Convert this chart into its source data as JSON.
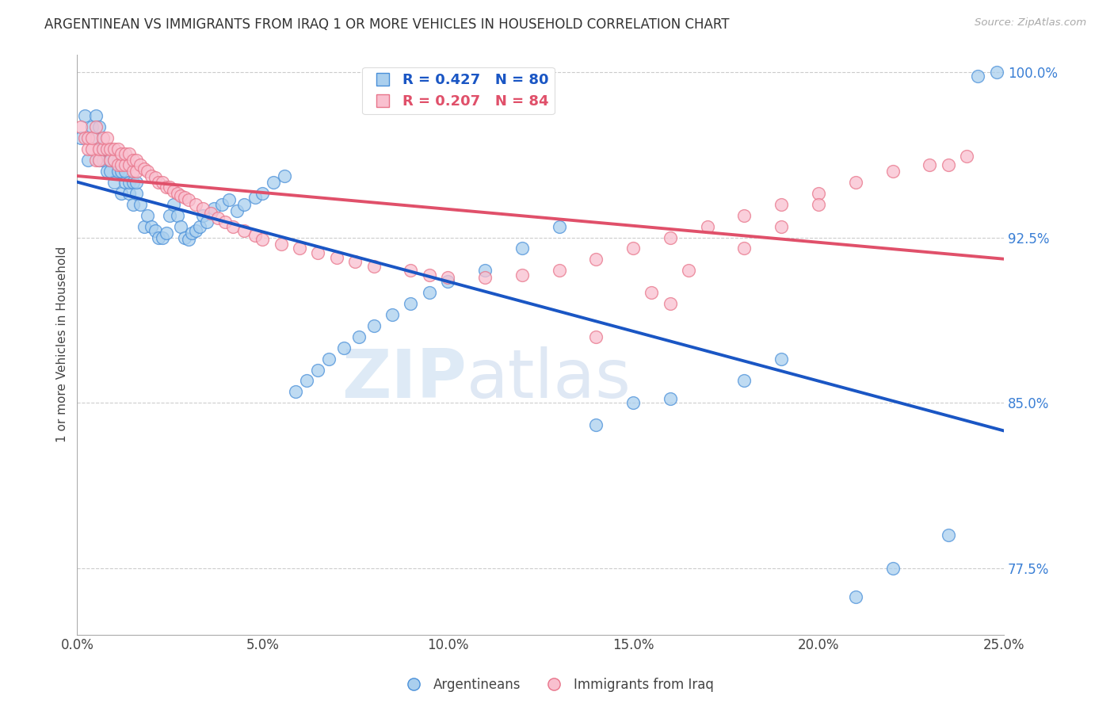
{
  "title": "ARGENTINEAN VS IMMIGRANTS FROM IRAQ 1 OR MORE VEHICLES IN HOUSEHOLD CORRELATION CHART",
  "source": "Source: ZipAtlas.com",
  "ylabel": "1 or more Vehicles in Household",
  "xmin": 0.0,
  "xmax": 0.25,
  "ymin": 0.745,
  "ymax": 1.008,
  "yticks": [
    0.775,
    0.85,
    0.925,
    1.0
  ],
  "ytick_labels": [
    "77.5%",
    "85.0%",
    "92.5%",
    "100.0%"
  ],
  "xticks": [
    0.0,
    0.05,
    0.1,
    0.15,
    0.2,
    0.25
  ],
  "xtick_labels": [
    "0.0%",
    "5.0%",
    "10.0%",
    "15.0%",
    "20.0%",
    "25.0%"
  ],
  "legend_blue_label": "R = 0.427   N = 80",
  "legend_pink_label": "R = 0.207   N = 84",
  "legend_blue_series": "Argentineans",
  "legend_pink_series": "Immigrants from Iraq",
  "blue_fill_color": "#aacfee",
  "pink_fill_color": "#f9c0cf",
  "blue_edge_color": "#4a90d9",
  "pink_edge_color": "#e8748a",
  "blue_line_color": "#1a56c4",
  "pink_line_color": "#e0506a",
  "background_color": "#ffffff",
  "watermark_zip": "ZIP",
  "watermark_atlas": "atlas",
  "blue_R": 0.427,
  "blue_N": 80,
  "pink_R": 0.207,
  "pink_N": 84,
  "blue_scatter_x": [
    0.001,
    0.002,
    0.003,
    0.004,
    0.005,
    0.005,
    0.006,
    0.006,
    0.007,
    0.007,
    0.008,
    0.008,
    0.009,
    0.009,
    0.01,
    0.01,
    0.011,
    0.011,
    0.012,
    0.012,
    0.013,
    0.013,
    0.014,
    0.014,
    0.015,
    0.015,
    0.016,
    0.016,
    0.017,
    0.018,
    0.019,
    0.02,
    0.021,
    0.022,
    0.023,
    0.024,
    0.025,
    0.026,
    0.027,
    0.028,
    0.029,
    0.03,
    0.031,
    0.032,
    0.033,
    0.034,
    0.035,
    0.037,
    0.039,
    0.041,
    0.043,
    0.045,
    0.048,
    0.05,
    0.053,
    0.056,
    0.059,
    0.062,
    0.065,
    0.068,
    0.072,
    0.076,
    0.08,
    0.085,
    0.09,
    0.095,
    0.1,
    0.11,
    0.12,
    0.13,
    0.14,
    0.15,
    0.16,
    0.18,
    0.19,
    0.21,
    0.22,
    0.235,
    0.243,
    0.248
  ],
  "blue_scatter_y": [
    0.97,
    0.98,
    0.96,
    0.975,
    0.97,
    0.98,
    0.96,
    0.975,
    0.96,
    0.965,
    0.955,
    0.965,
    0.955,
    0.96,
    0.95,
    0.96,
    0.955,
    0.96,
    0.945,
    0.955,
    0.95,
    0.955,
    0.945,
    0.95,
    0.94,
    0.95,
    0.945,
    0.95,
    0.94,
    0.93,
    0.935,
    0.93,
    0.928,
    0.925,
    0.925,
    0.927,
    0.935,
    0.94,
    0.935,
    0.93,
    0.925,
    0.924,
    0.927,
    0.928,
    0.93,
    0.935,
    0.932,
    0.938,
    0.94,
    0.942,
    0.937,
    0.94,
    0.943,
    0.945,
    0.95,
    0.953,
    0.855,
    0.86,
    0.865,
    0.87,
    0.875,
    0.88,
    0.885,
    0.89,
    0.895,
    0.9,
    0.905,
    0.91,
    0.92,
    0.93,
    0.84,
    0.85,
    0.852,
    0.86,
    0.87,
    0.762,
    0.775,
    0.79,
    0.998,
    1.0
  ],
  "pink_scatter_x": [
    0.001,
    0.002,
    0.003,
    0.003,
    0.004,
    0.004,
    0.005,
    0.005,
    0.006,
    0.006,
    0.007,
    0.007,
    0.008,
    0.008,
    0.009,
    0.009,
    0.01,
    0.01,
    0.011,
    0.011,
    0.012,
    0.012,
    0.013,
    0.013,
    0.014,
    0.014,
    0.015,
    0.015,
    0.016,
    0.016,
    0.017,
    0.018,
    0.019,
    0.02,
    0.021,
    0.022,
    0.023,
    0.024,
    0.025,
    0.026,
    0.027,
    0.028,
    0.029,
    0.03,
    0.032,
    0.034,
    0.036,
    0.038,
    0.04,
    0.042,
    0.045,
    0.048,
    0.05,
    0.055,
    0.06,
    0.065,
    0.07,
    0.075,
    0.08,
    0.09,
    0.095,
    0.1,
    0.11,
    0.12,
    0.13,
    0.14,
    0.15,
    0.16,
    0.17,
    0.18,
    0.19,
    0.2,
    0.21,
    0.22,
    0.23,
    0.235,
    0.24,
    0.18,
    0.19,
    0.2,
    0.155,
    0.165,
    0.16,
    0.14
  ],
  "pink_scatter_y": [
    0.975,
    0.97,
    0.965,
    0.97,
    0.965,
    0.97,
    0.96,
    0.975,
    0.96,
    0.965,
    0.965,
    0.97,
    0.965,
    0.97,
    0.96,
    0.965,
    0.96,
    0.965,
    0.958,
    0.965,
    0.958,
    0.963,
    0.958,
    0.963,
    0.958,
    0.963,
    0.955,
    0.96,
    0.955,
    0.96,
    0.958,
    0.956,
    0.955,
    0.953,
    0.952,
    0.95,
    0.95,
    0.948,
    0.948,
    0.946,
    0.945,
    0.944,
    0.943,
    0.942,
    0.94,
    0.938,
    0.936,
    0.934,
    0.932,
    0.93,
    0.928,
    0.926,
    0.924,
    0.922,
    0.92,
    0.918,
    0.916,
    0.914,
    0.912,
    0.91,
    0.908,
    0.907,
    0.907,
    0.908,
    0.91,
    0.915,
    0.92,
    0.925,
    0.93,
    0.935,
    0.94,
    0.945,
    0.95,
    0.955,
    0.958,
    0.958,
    0.962,
    0.92,
    0.93,
    0.94,
    0.9,
    0.91,
    0.895,
    0.88
  ]
}
